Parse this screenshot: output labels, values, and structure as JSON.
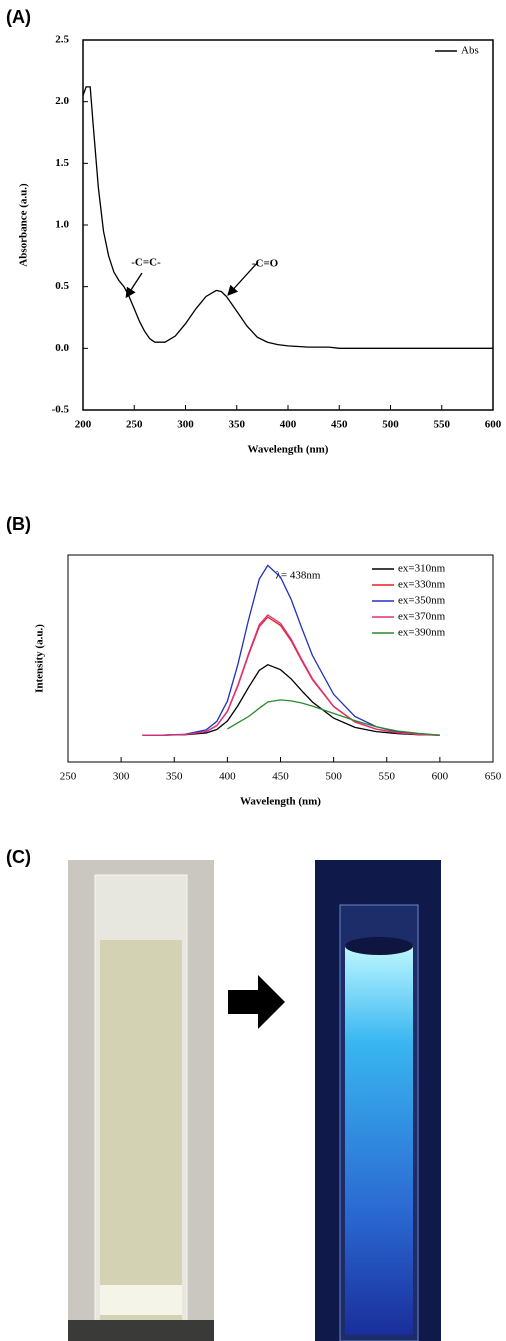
{
  "panel_labels": [
    "(A)",
    "(B)",
    "(C)"
  ],
  "chart_data": [
    {
      "type": "line",
      "x_label": "Wavelength (nm)",
      "y_label": "Absorbance (a.u.)",
      "annotations": [
        "-C=C-",
        "-C=O"
      ],
      "x": [
        200,
        203,
        207,
        210,
        215,
        220,
        225,
        230,
        235,
        240,
        245,
        250,
        255,
        260,
        265,
        270,
        280,
        290,
        300,
        310,
        320,
        330,
        335,
        340,
        350,
        360,
        370,
        380,
        390,
        400,
        420,
        440,
        450,
        500,
        600
      ],
      "series": [
        {
          "name": "Abs",
          "color": "#000000",
          "values": [
            2.05,
            2.12,
            2.12,
            1.8,
            1.3,
            0.95,
            0.75,
            0.62,
            0.55,
            0.5,
            0.42,
            0.32,
            0.22,
            0.14,
            0.08,
            0.05,
            0.05,
            0.1,
            0.2,
            0.32,
            0.42,
            0.47,
            0.46,
            0.42,
            0.3,
            0.18,
            0.09,
            0.05,
            0.03,
            0.02,
            0.01,
            0.01,
            0,
            0,
            0
          ]
        }
      ],
      "xlim": [
        200,
        600
      ],
      "xticks": [
        200,
        250,
        300,
        350,
        400,
        450,
        500,
        550,
        600
      ],
      "ylim": [
        -0.5,
        2.5
      ],
      "yticks": [
        -0.5,
        {
          "value": 0,
          "label": "0.0"
        },
        0.5,
        {
          "value": 1,
          "label": "1.0"
        },
        1.5,
        {
          "value": 2,
          "label": "2.0"
        },
        2.5
      ],
      "legend": "upper right"
    },
    {
      "type": "line",
      "x_label": "Wavelength (nm)",
      "y_label": "Intensity (a.u.)",
      "annotations": [
        "λ= 438nm"
      ],
      "x": [
        320,
        340,
        360,
        380,
        390,
        400,
        410,
        420,
        430,
        438,
        450,
        460,
        470,
        480,
        500,
        520,
        540,
        560,
        580,
        600
      ],
      "series": [
        {
          "name": "ex=310nm",
          "color": "#000000",
          "values": [
            13,
            13,
            13.2,
            14,
            15.7,
            19.8,
            27.3,
            36.1,
            44.3,
            47,
            44.6,
            40.2,
            34.4,
            29,
            21.2,
            16.7,
            14.7,
            13.7,
            13.2,
            13
          ]
        },
        {
          "name": "ex=330nm",
          "color": "#e02020",
          "values": [
            13,
            13,
            13.3,
            14.7,
            17.6,
            24.4,
            36.9,
            51.8,
            65.4,
            70,
            66,
            58.6,
            48.9,
            39.8,
            26.7,
            19.3,
            15.9,
            14.1,
            13.3,
            13
          ]
        },
        {
          "name": "ex=350nm",
          "color": "#2030c0",
          "values": [
            13,
            13,
            13.4,
            15.5,
            19.6,
            29.4,
            47.4,
            68.8,
            88.4,
            95,
            89.3,
            78.6,
            64.7,
            51.5,
            32.7,
            22,
            17.1,
            14.6,
            13.4,
            13
          ]
        },
        {
          "name": "ex=370nm",
          "color": "#e0307a",
          "values": [
            13,
            13,
            13.3,
            14.7,
            17.6,
            24.6,
            37.4,
            52.4,
            66.4,
            71,
            67,
            59.4,
            49.5,
            40.3,
            26.9,
            19.4,
            15.9,
            14.2,
            13.3,
            13
          ]
        },
        {
          "name": "ex=390nm",
          "color": "#2a8a2a",
          "values": [
            null,
            null,
            null,
            null,
            null,
            16,
            19,
            22,
            26,
            29,
            30,
            29.5,
            28.5,
            27,
            23.5,
            20,
            17,
            15,
            13.8,
            13
          ]
        }
      ],
      "xlim": [
        250,
        650
      ],
      "xticks": [
        250,
        300,
        350,
        400,
        450,
        500,
        550,
        600,
        650
      ],
      "ylim": [
        0,
        100
      ],
      "legend": "upper right"
    }
  ]
}
